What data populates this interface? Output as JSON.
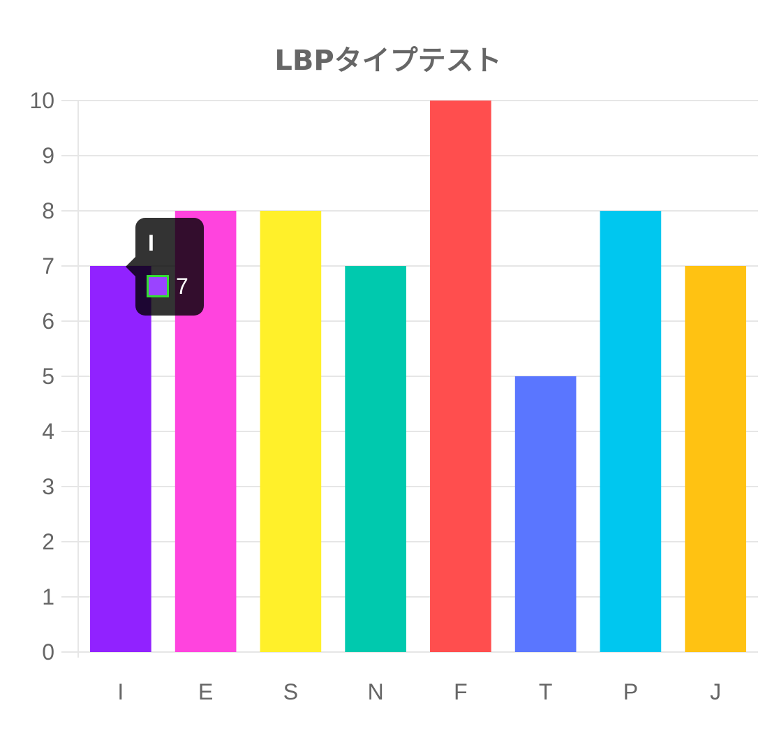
{
  "chart_data": {
    "type": "bar",
    "title": "LBPタイプテスト",
    "categories": [
      "I",
      "E",
      "S",
      "N",
      "F",
      "T",
      "P",
      "J"
    ],
    "values": [
      7,
      8,
      8,
      7,
      10,
      5,
      8,
      7
    ],
    "colors": [
      "#9122ff",
      "#ff44de",
      "#fff02a",
      "#00c9ae",
      "#ff4e4e",
      "#5a76ff",
      "#00c7ef",
      "#ffc212"
    ],
    "ylim": [
      0,
      10
    ],
    "yticks": [
      0,
      1,
      2,
      3,
      4,
      5,
      6,
      7,
      8,
      9,
      10
    ],
    "grid": true,
    "legend": "none"
  },
  "tooltip": {
    "title": "I",
    "value": "7",
    "swatch_color": "#9a44ff",
    "swatch_border": "#33dd33"
  }
}
